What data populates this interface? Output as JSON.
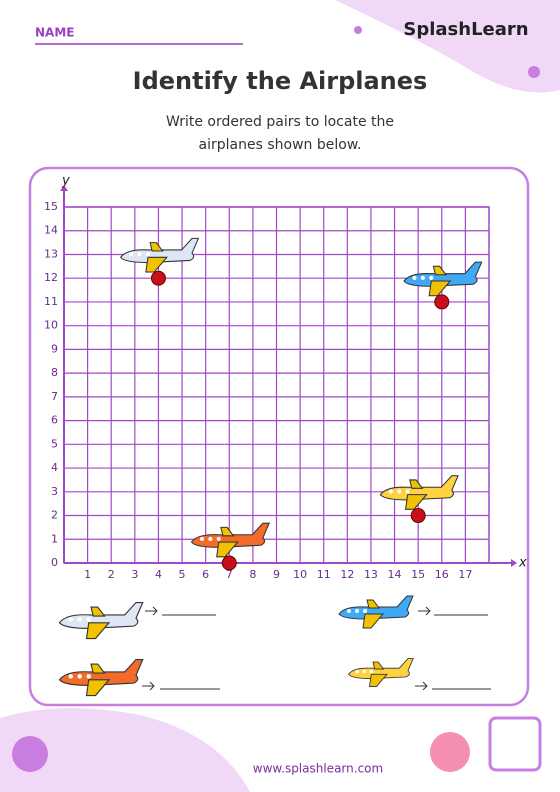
{
  "header": {
    "name_label": "NAME",
    "brand": "SplashLearn"
  },
  "title": "Identify the Airplanes",
  "instructions": [
    "Write ordered pairs to locate the",
    "airplanes shown below."
  ],
  "chart_data": {
    "type": "scatter",
    "x_label": "x",
    "y_label": "y",
    "xlim": [
      0,
      18
    ],
    "ylim": [
      0,
      15
    ],
    "xticks": [
      1,
      2,
      3,
      4,
      5,
      6,
      7,
      8,
      9,
      10,
      11,
      12,
      13,
      14,
      15,
      16,
      17
    ],
    "yticks": [
      0,
      1,
      2,
      3,
      4,
      5,
      6,
      7,
      8,
      9,
      10,
      11,
      12,
      13,
      14,
      15
    ],
    "x": [
      4,
      16,
      15,
      7
    ],
    "values": [
      12,
      11,
      2,
      0
    ],
    "color": "#c8101a",
    "grid": true
  },
  "footer": {
    "url": "www.splashlearn.com"
  }
}
